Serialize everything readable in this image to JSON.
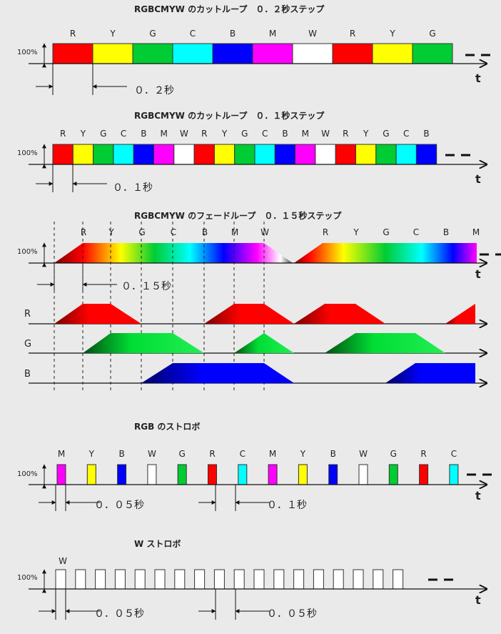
{
  "colors": {
    "R": "#ff0000",
    "Y": "#ffff00",
    "G": "#00cc33",
    "C": "#00ffff",
    "B": "#0000ff",
    "M": "#ff00ff",
    "W": "#ffffff"
  },
  "common": {
    "percent": "100%",
    "t": "t",
    "dash": "– –"
  },
  "sec1": {
    "title": "RGBCMYW のカットループ　０．２秒ステップ",
    "blocks": [
      "R",
      "Y",
      "G",
      "C",
      "B",
      "M",
      "W",
      "R",
      "Y",
      "G"
    ],
    "time": "０．２秒"
  },
  "sec2": {
    "title": "RGBCMYW のカットループ　０．１秒ステップ",
    "blocks": [
      "R",
      "Y",
      "G",
      "C",
      "B",
      "M",
      "W",
      "R",
      "Y",
      "G",
      "C",
      "B",
      "M",
      "W",
      "R",
      "Y",
      "G",
      "C",
      "B"
    ],
    "time": "０．１秒"
  },
  "sec3": {
    "title": "RGBCMYW のフェードループ　０．１５秒ステップ",
    "labels": [
      "R",
      "Y",
      "G",
      "C",
      "B",
      "M",
      "W",
      "R",
      "Y",
      "G",
      "C",
      "B",
      "M"
    ],
    "time": "０．１５秒",
    "channels": [
      "R",
      "G",
      "B"
    ]
  },
  "sec4": {
    "title": "RGB のストロボ",
    "pulses": [
      "M",
      "Y",
      "B",
      "W",
      "G",
      "R",
      "C",
      "M",
      "Y",
      "B",
      "W",
      "G",
      "R",
      "C"
    ],
    "time1": "０．０５秒",
    "time2": "０．１秒"
  },
  "sec5": {
    "title": "W ストロボ",
    "label": "W",
    "pulse_count": 18,
    "time1": "０．０５秒",
    "time2": "０．０５秒"
  }
}
